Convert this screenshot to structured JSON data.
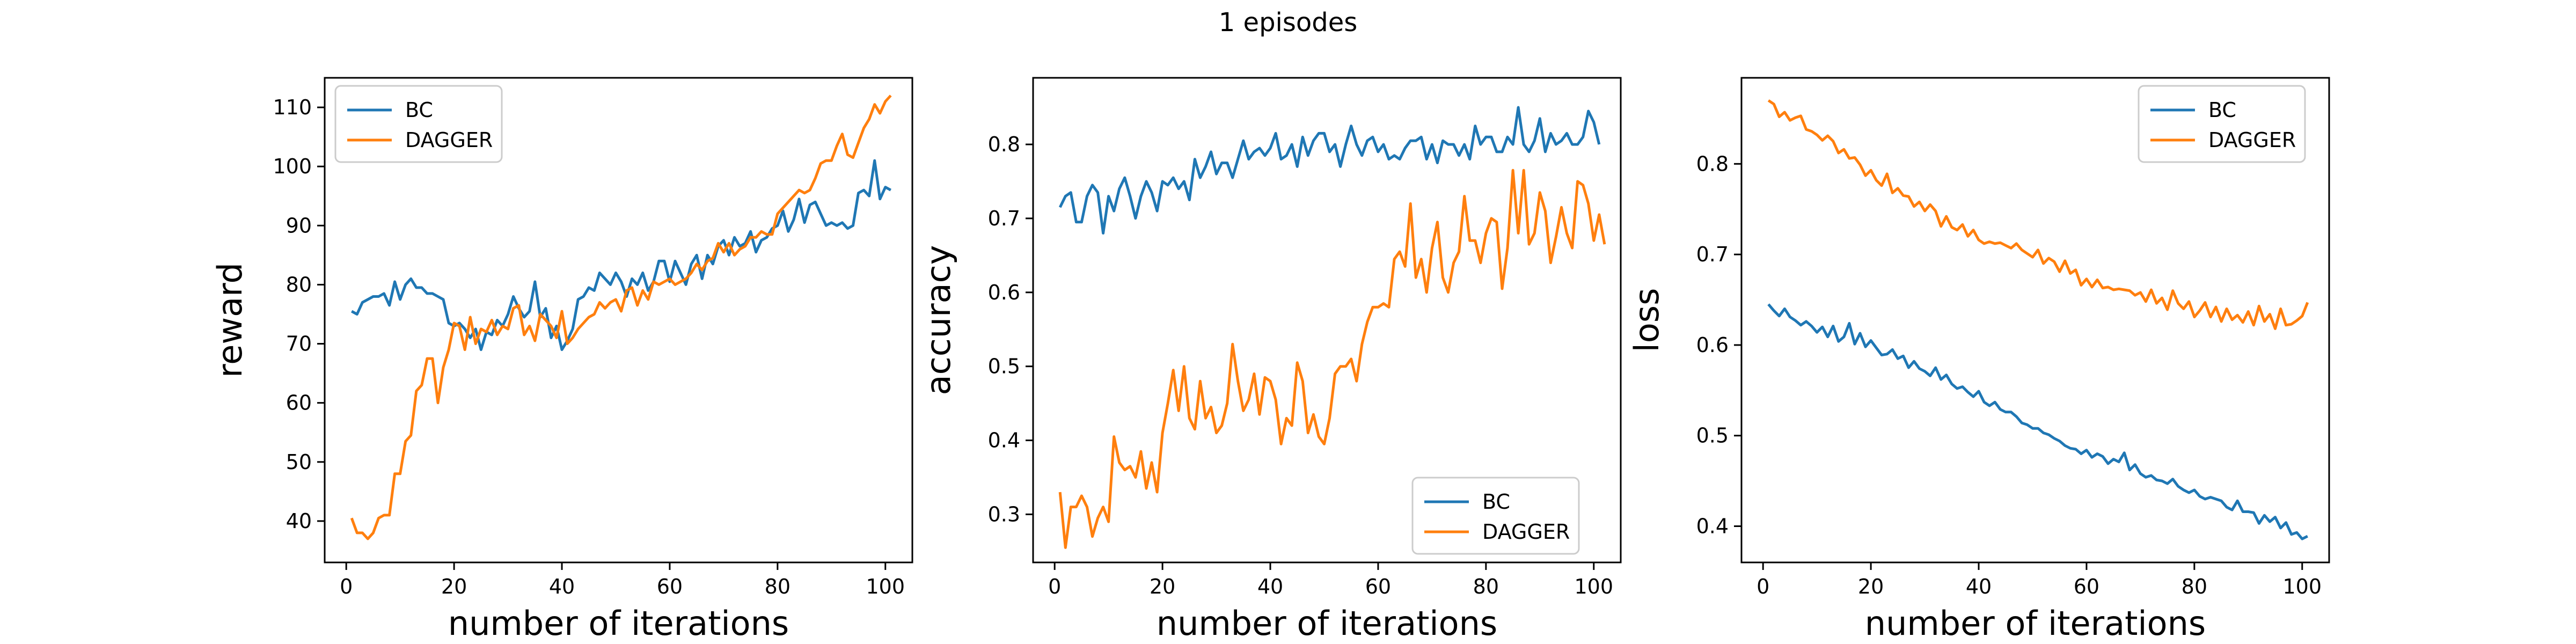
{
  "figure": {
    "suptitle": "1 episodes"
  },
  "colors": {
    "BC": "#1f77b4",
    "DAGGER": "#ff7f0e",
    "axes": "#000000",
    "background": "#ffffff"
  },
  "chart_data": [
    {
      "type": "line",
      "xlabel": "number of iterations",
      "ylabel": "reward",
      "xlim": [
        -4,
        105
      ],
      "ylim": [
        33,
        115
      ],
      "xticks": [
        0,
        20,
        40,
        60,
        80,
        100
      ],
      "yticks": [
        40,
        50,
        60,
        70,
        80,
        90,
        100,
        110
      ],
      "grid": false,
      "legend_position": "top-left",
      "series": [
        {
          "name": "BC",
          "color": "#1f77b4",
          "values": [
            75.5,
            75.0,
            77.0,
            77.5,
            78.0,
            78.0,
            78.5,
            76.5,
            80.5,
            77.5,
            80.0,
            81.0,
            79.5,
            79.5,
            78.5,
            78.5,
            78.0,
            77.5,
            73.5,
            73.0,
            73.5,
            72.5,
            71.0,
            72.5,
            69.0,
            72.0,
            71.5,
            74.0,
            73.0,
            75.0,
            78.0,
            76.0,
            74.5,
            75.5,
            80.5,
            74.5,
            76.0,
            71.0,
            73.0,
            69.0,
            70.5,
            72.5,
            77.5,
            78.0,
            79.5,
            79.0,
            82.0,
            81.0,
            80.0,
            82.0,
            80.5,
            78.0,
            81.0,
            80.0,
            82.0,
            79.0,
            80.5,
            84.0,
            84.0,
            80.5,
            84.0,
            82.0,
            80.0,
            83.5,
            85.0,
            81.0,
            85.0,
            83.5,
            86.5,
            87.5,
            85.0,
            88.0,
            86.5,
            87.0,
            89.0,
            85.5,
            87.5,
            88.0,
            89.5,
            90.0,
            92.5,
            89.0,
            91.0,
            94.5,
            90.5,
            93.5,
            94.0,
            92.0,
            90.0,
            90.5,
            90.0,
            90.5,
            89.5,
            90.0,
            95.5,
            96.0,
            95.0,
            101.0,
            94.5,
            96.5,
            96.0
          ]
        },
        {
          "name": "DAGGER",
          "color": "#ff7f0e",
          "values": [
            40.5,
            38.0,
            38.0,
            37.0,
            38.0,
            40.5,
            41.0,
            41.0,
            48.0,
            48.0,
            53.5,
            54.5,
            62.0,
            63.0,
            67.5,
            67.5,
            60.0,
            66.0,
            69.0,
            73.5,
            73.0,
            69.0,
            74.5,
            70.0,
            72.5,
            72.0,
            74.0,
            71.5,
            73.0,
            72.5,
            76.0,
            76.5,
            71.5,
            73.0,
            70.5,
            75.0,
            74.0,
            73.0,
            71.0,
            75.5,
            70.0,
            71.0,
            72.5,
            73.5,
            74.5,
            75.0,
            77.0,
            76.0,
            77.0,
            77.5,
            75.5,
            79.0,
            79.5,
            76.5,
            79.0,
            77.5,
            80.5,
            80.0,
            80.5,
            81.0,
            80.0,
            80.5,
            81.0,
            82.0,
            83.5,
            82.5,
            84.0,
            84.5,
            87.0,
            85.5,
            87.0,
            85.0,
            86.0,
            86.5,
            88.0,
            88.0,
            89.0,
            88.5,
            88.5,
            92.0,
            93.0,
            94.0,
            95.0,
            96.0,
            95.5,
            96.0,
            98.0,
            100.5,
            101.0,
            101.0,
            103.5,
            105.5,
            102.0,
            101.5,
            104.0,
            106.5,
            108.0,
            110.5,
            109.0,
            111.0,
            112.0
          ]
        }
      ]
    },
    {
      "type": "line",
      "xlabel": "number of iterations",
      "ylabel": "accuracy",
      "xlim": [
        -4,
        105
      ],
      "ylim": [
        0.235,
        0.89
      ],
      "xticks": [
        0,
        20,
        40,
        60,
        80,
        100
      ],
      "yticks": [
        0.3,
        0.4,
        0.5,
        0.6,
        0.7,
        0.8
      ],
      "grid": false,
      "legend_position": "bottom-right",
      "series": [
        {
          "name": "BC",
          "color": "#1f77b4",
          "values": [
            0.715,
            0.73,
            0.735,
            0.695,
            0.695,
            0.73,
            0.745,
            0.735,
            0.68,
            0.73,
            0.71,
            0.74,
            0.755,
            0.73,
            0.7,
            0.73,
            0.75,
            0.735,
            0.71,
            0.75,
            0.745,
            0.755,
            0.74,
            0.75,
            0.725,
            0.78,
            0.755,
            0.77,
            0.79,
            0.76,
            0.775,
            0.775,
            0.755,
            0.78,
            0.805,
            0.78,
            0.79,
            0.795,
            0.785,
            0.795,
            0.815,
            0.78,
            0.785,
            0.8,
            0.77,
            0.81,
            0.785,
            0.805,
            0.815,
            0.815,
            0.79,
            0.8,
            0.77,
            0.8,
            0.825,
            0.8,
            0.785,
            0.805,
            0.81,
            0.79,
            0.8,
            0.78,
            0.785,
            0.78,
            0.795,
            0.805,
            0.805,
            0.81,
            0.78,
            0.8,
            0.775,
            0.805,
            0.8,
            0.8,
            0.785,
            0.8,
            0.78,
            0.825,
            0.8,
            0.81,
            0.81,
            0.79,
            0.79,
            0.81,
            0.8,
            0.85,
            0.8,
            0.79,
            0.805,
            0.835,
            0.79,
            0.815,
            0.8,
            0.805,
            0.815,
            0.8,
            0.8,
            0.81,
            0.845,
            0.83,
            0.8
          ]
        },
        {
          "name": "DAGGER",
          "color": "#ff7f0e",
          "values": [
            0.33,
            0.255,
            0.31,
            0.31,
            0.325,
            0.31,
            0.27,
            0.295,
            0.31,
            0.29,
            0.405,
            0.37,
            0.36,
            0.365,
            0.35,
            0.385,
            0.335,
            0.37,
            0.33,
            0.41,
            0.45,
            0.495,
            0.44,
            0.5,
            0.43,
            0.415,
            0.48,
            0.43,
            0.445,
            0.41,
            0.42,
            0.45,
            0.53,
            0.48,
            0.44,
            0.455,
            0.49,
            0.435,
            0.485,
            0.48,
            0.455,
            0.395,
            0.43,
            0.42,
            0.505,
            0.48,
            0.41,
            0.435,
            0.405,
            0.395,
            0.43,
            0.49,
            0.5,
            0.5,
            0.51,
            0.48,
            0.53,
            0.56,
            0.58,
            0.58,
            0.585,
            0.58,
            0.645,
            0.655,
            0.635,
            0.72,
            0.62,
            0.645,
            0.6,
            0.66,
            0.695,
            0.62,
            0.6,
            0.64,
            0.655,
            0.73,
            0.67,
            0.67,
            0.64,
            0.68,
            0.7,
            0.695,
            0.605,
            0.66,
            0.765,
            0.68,
            0.765,
            0.665,
            0.68,
            0.735,
            0.71,
            0.64,
            0.675,
            0.715,
            0.68,
            0.66,
            0.75,
            0.745,
            0.72,
            0.67,
            0.705,
            0.665
          ]
        }
      ]
    },
    {
      "type": "line",
      "xlabel": "number of iterations",
      "ylabel": "loss",
      "xlim": [
        -4,
        105
      ],
      "ylim": [
        0.36,
        0.895
      ],
      "xticks": [
        0,
        20,
        40,
        60,
        80,
        100
      ],
      "yticks": [
        0.4,
        0.5,
        0.6,
        0.7,
        0.8
      ],
      "grid": false,
      "legend_position": "top-right",
      "series": [
        {
          "name": "BC",
          "color": "#1f77b4",
          "values": [
            0.645,
            0.638,
            0.632,
            0.64,
            0.631,
            0.627,
            0.622,
            0.626,
            0.621,
            0.614,
            0.62,
            0.609,
            0.621,
            0.604,
            0.609,
            0.624,
            0.601,
            0.613,
            0.598,
            0.605,
            0.597,
            0.589,
            0.59,
            0.595,
            0.585,
            0.588,
            0.575,
            0.582,
            0.574,
            0.571,
            0.566,
            0.575,
            0.562,
            0.567,
            0.557,
            0.552,
            0.554,
            0.548,
            0.543,
            0.549,
            0.537,
            0.533,
            0.537,
            0.529,
            0.526,
            0.526,
            0.521,
            0.514,
            0.512,
            0.508,
            0.508,
            0.503,
            0.501,
            0.497,
            0.494,
            0.489,
            0.486,
            0.485,
            0.48,
            0.484,
            0.476,
            0.48,
            0.477,
            0.469,
            0.474,
            0.471,
            0.481,
            0.462,
            0.468,
            0.458,
            0.454,
            0.456,
            0.451,
            0.45,
            0.447,
            0.452,
            0.444,
            0.44,
            0.437,
            0.44,
            0.433,
            0.43,
            0.432,
            0.43,
            0.428,
            0.421,
            0.418,
            0.428,
            0.416,
            0.416,
            0.415,
            0.403,
            0.412,
            0.405,
            0.41,
            0.398,
            0.404,
            0.391,
            0.393,
            0.386,
            0.389
          ]
        },
        {
          "name": "DAGGER",
          "color": "#ff7f0e",
          "values": [
            0.87,
            0.866,
            0.852,
            0.857,
            0.848,
            0.851,
            0.853,
            0.838,
            0.836,
            0.832,
            0.826,
            0.831,
            0.825,
            0.812,
            0.816,
            0.806,
            0.807,
            0.799,
            0.787,
            0.793,
            0.782,
            0.776,
            0.789,
            0.768,
            0.773,
            0.765,
            0.764,
            0.753,
            0.758,
            0.748,
            0.755,
            0.748,
            0.731,
            0.742,
            0.73,
            0.727,
            0.733,
            0.72,
            0.727,
            0.716,
            0.712,
            0.714,
            0.712,
            0.713,
            0.71,
            0.707,
            0.712,
            0.705,
            0.701,
            0.697,
            0.705,
            0.69,
            0.696,
            0.692,
            0.681,
            0.693,
            0.679,
            0.683,
            0.666,
            0.673,
            0.664,
            0.672,
            0.663,
            0.664,
            0.661,
            0.662,
            0.661,
            0.66,
            0.655,
            0.658,
            0.648,
            0.661,
            0.646,
            0.652,
            0.639,
            0.66,
            0.646,
            0.64,
            0.648,
            0.631,
            0.638,
            0.647,
            0.631,
            0.642,
            0.626,
            0.64,
            0.628,
            0.633,
            0.625,
            0.637,
            0.622,
            0.643,
            0.626,
            0.634,
            0.618,
            0.64,
            0.622,
            0.623,
            0.627,
            0.632,
            0.647
          ]
        }
      ]
    }
  ]
}
